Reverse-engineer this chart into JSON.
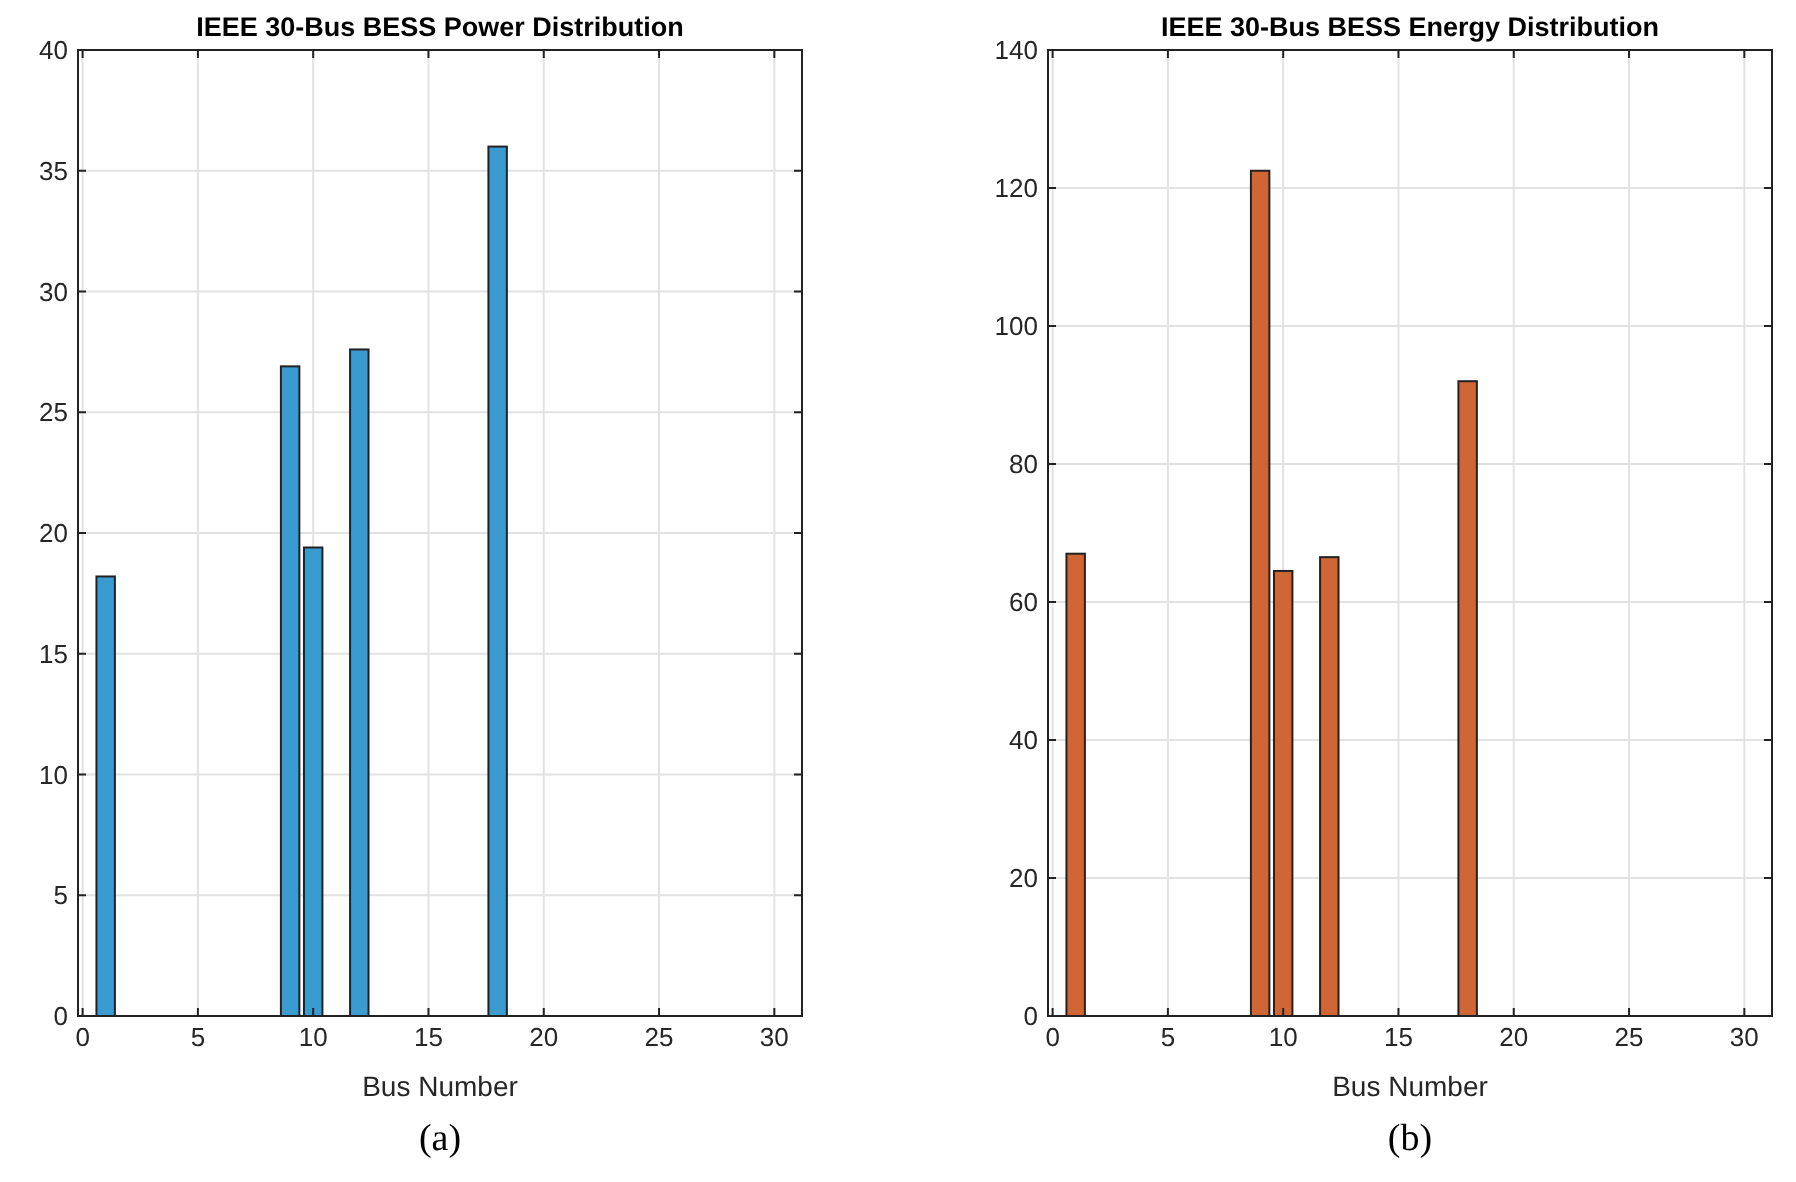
{
  "chart_data": [
    {
      "type": "bar",
      "title": "IEEE 30-Bus BESS Power Distribution",
      "xlabel": "Bus Number",
      "annotations": [
        "(a)"
      ],
      "x": [
        1,
        2,
        3,
        4,
        5,
        6,
        7,
        8,
        9,
        10,
        11,
        12,
        13,
        14,
        15,
        16,
        17,
        18,
        19,
        20,
        21,
        22,
        23,
        24,
        25,
        26,
        27,
        28,
        29,
        30
      ],
      "series": [
        {
          "color": "#3a9bd0",
          "values": [
            18.2,
            0,
            0,
            0,
            0,
            0,
            0,
            0,
            26.9,
            19.4,
            0,
            27.6,
            0,
            0,
            0,
            0,
            0,
            36,
            0,
            0,
            0,
            0,
            0,
            0,
            0,
            0,
            0,
            0,
            0,
            0
          ]
        }
      ],
      "xlim": [
        -0.2,
        31.2
      ],
      "xticks": [
        0,
        5,
        10,
        15,
        20,
        25,
        30
      ],
      "ylim": [
        0,
        40
      ],
      "yticks": [
        0,
        5,
        10,
        15,
        20,
        25,
        30,
        35,
        40
      ],
      "grid": true
    },
    {
      "type": "bar",
      "title": "IEEE 30-Bus BESS Energy Distribution",
      "xlabel": "Bus Number",
      "annotations": [
        "(b)"
      ],
      "x": [
        1,
        2,
        3,
        4,
        5,
        6,
        7,
        8,
        9,
        10,
        11,
        12,
        13,
        14,
        15,
        16,
        17,
        18,
        19,
        20,
        21,
        22,
        23,
        24,
        25,
        26,
        27,
        28,
        29,
        30
      ],
      "series": [
        {
          "color": "#cf6633",
          "values": [
            67,
            0,
            0,
            0,
            0,
            0,
            0,
            0,
            122.5,
            64.5,
            0,
            66.5,
            0,
            0,
            0,
            0,
            0,
            92,
            0,
            0,
            0,
            0,
            0,
            0,
            0,
            0,
            0,
            0,
            0,
            0
          ]
        }
      ],
      "xlim": [
        -0.2,
        31.2
      ],
      "xticks": [
        0,
        5,
        10,
        15,
        20,
        25,
        30
      ],
      "ylim": [
        0,
        140
      ],
      "yticks": [
        0,
        20,
        40,
        60,
        80,
        100,
        120,
        140
      ],
      "grid": true
    }
  ]
}
